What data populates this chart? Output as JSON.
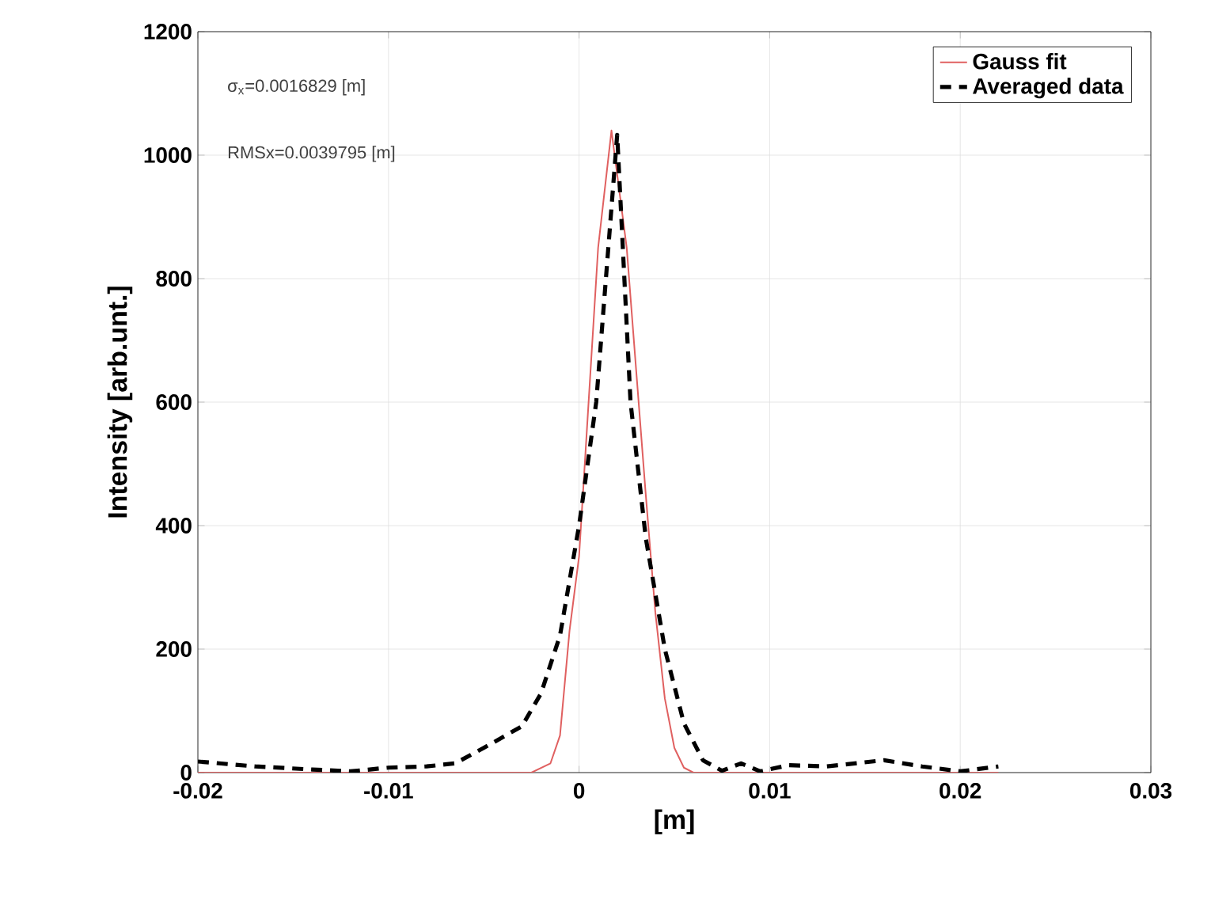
{
  "chart_data": {
    "type": "line",
    "xlabel": "[m]",
    "ylabel": "Intensity [arb.unt.]",
    "xlim": [
      -0.02,
      0.03
    ],
    "xticks": [
      -0.02,
      -0.01,
      0,
      0.01,
      0.02,
      0.03
    ],
    "ylim": [
      0,
      1200
    ],
    "yticks": [
      0,
      200,
      400,
      600,
      800,
      1000,
      1200
    ],
    "grid": true,
    "legend": "top right",
    "annotations": [
      "σ$_{x}$=0.0016829 [m]",
      "RMSx=0.0039795 [m]"
    ],
    "series": [
      {
        "name": "Gauss fit",
        "color": "#e06060",
        "line_style": "solid",
        "x": [
          -0.02,
          -0.0025,
          -0.0015,
          -0.001,
          -0.0005,
          0,
          0.0005,
          0.001,
          0.0017,
          0.0025,
          0.003,
          0.0035,
          0.004,
          0.0045,
          0.005,
          0.0055,
          0.006,
          0.022
        ],
        "values": [
          0,
          0,
          15,
          60,
          230,
          350,
          600,
          850,
          1040,
          850,
          650,
          450,
          260,
          120,
          40,
          8,
          0,
          0
        ]
      },
      {
        "name": "Averaged data",
        "color": "#000000",
        "line_style": "dashed",
        "x": [
          -0.02,
          -0.017,
          -0.014,
          -0.012,
          -0.01,
          -0.008,
          -0.0065,
          -0.005,
          -0.003,
          -0.002,
          -0.001,
          0,
          0.0009,
          0.002,
          0.0027,
          0.0035,
          0.0045,
          0.0055,
          0.0065,
          0.0075,
          0.0085,
          0.0095,
          0.011,
          0.013,
          0.016,
          0.018,
          0.02,
          0.022
        ],
        "values": [
          18,
          10,
          5,
          2,
          8,
          10,
          15,
          40,
          75,
          128,
          222,
          400,
          600,
          1033,
          600,
          380,
          200,
          80,
          20,
          3,
          15,
          2,
          12,
          10,
          20,
          10,
          2,
          10
        ]
      }
    ]
  }
}
